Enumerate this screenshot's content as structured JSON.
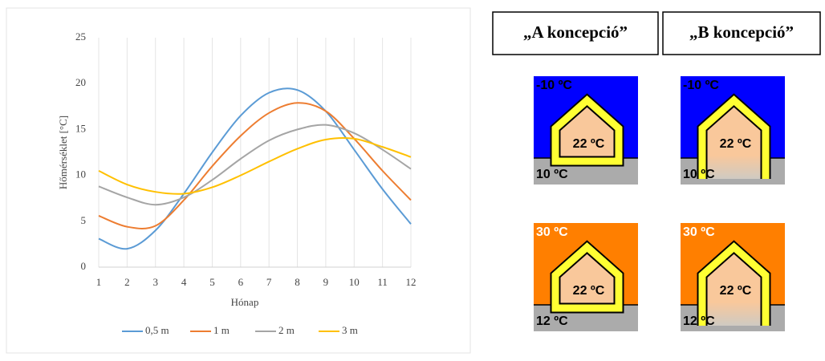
{
  "chart_data": {
    "type": "line",
    "x_label": "Hónap",
    "y_label": "Hőmérséklet  [°C]",
    "x": [
      1,
      2,
      3,
      4,
      5,
      6,
      7,
      8,
      9,
      10,
      11,
      12
    ],
    "xlim": [
      1,
      12
    ],
    "xticks": [
      1,
      2,
      3,
      4,
      5,
      6,
      7,
      8,
      9,
      10,
      11,
      12
    ],
    "ylim": [
      0,
      25
    ],
    "yticks": [
      0,
      5,
      10,
      15,
      20,
      25
    ],
    "grid": "x",
    "legend": "bottom",
    "series": [
      {
        "name": "0,5 m",
        "color": "#5b9bd5",
        "values": [
          3.1,
          2.0,
          4.0,
          8.0,
          12.5,
          16.5,
          19.0,
          19.3,
          17.0,
          12.8,
          8.5,
          4.7
        ]
      },
      {
        "name": "1 m",
        "color": "#ed7d31",
        "values": [
          5.6,
          4.4,
          4.5,
          7.3,
          11.0,
          14.3,
          16.8,
          17.9,
          17.0,
          14.0,
          10.5,
          7.3
        ]
      },
      {
        "name": "2 m",
        "color": "#a5a5a5",
        "values": [
          8.8,
          7.6,
          6.8,
          7.6,
          9.5,
          11.8,
          13.8,
          15.0,
          15.5,
          14.6,
          12.8,
          10.7
        ]
      },
      {
        "name": "3 m",
        "color": "#ffc000",
        "values": [
          10.5,
          9.0,
          8.2,
          8.0,
          8.7,
          10.0,
          11.5,
          12.9,
          13.9,
          14.0,
          13.1,
          12.0
        ]
      }
    ]
  },
  "diagram": {
    "columns": [
      "„A koncepció”",
      "„B koncepció”"
    ],
    "panels": [
      {
        "air": "-10 ºC",
        "inside": "22 ºC",
        "ground": "10 ºC",
        "air_color": "#0000ff"
      },
      {
        "air": "-10 ºC",
        "inside": "22 ºC",
        "ground": "10 ºC",
        "air_color": "#0000ff"
      },
      {
        "air": "30 ºC",
        "inside": "22 ºC",
        "ground": "12 ºC",
        "air_color": "#ff7f00"
      },
      {
        "air": "30 ºC",
        "inside": "22 ºC",
        "ground": "12 ºC",
        "air_color": "#ff7f00"
      }
    ]
  }
}
